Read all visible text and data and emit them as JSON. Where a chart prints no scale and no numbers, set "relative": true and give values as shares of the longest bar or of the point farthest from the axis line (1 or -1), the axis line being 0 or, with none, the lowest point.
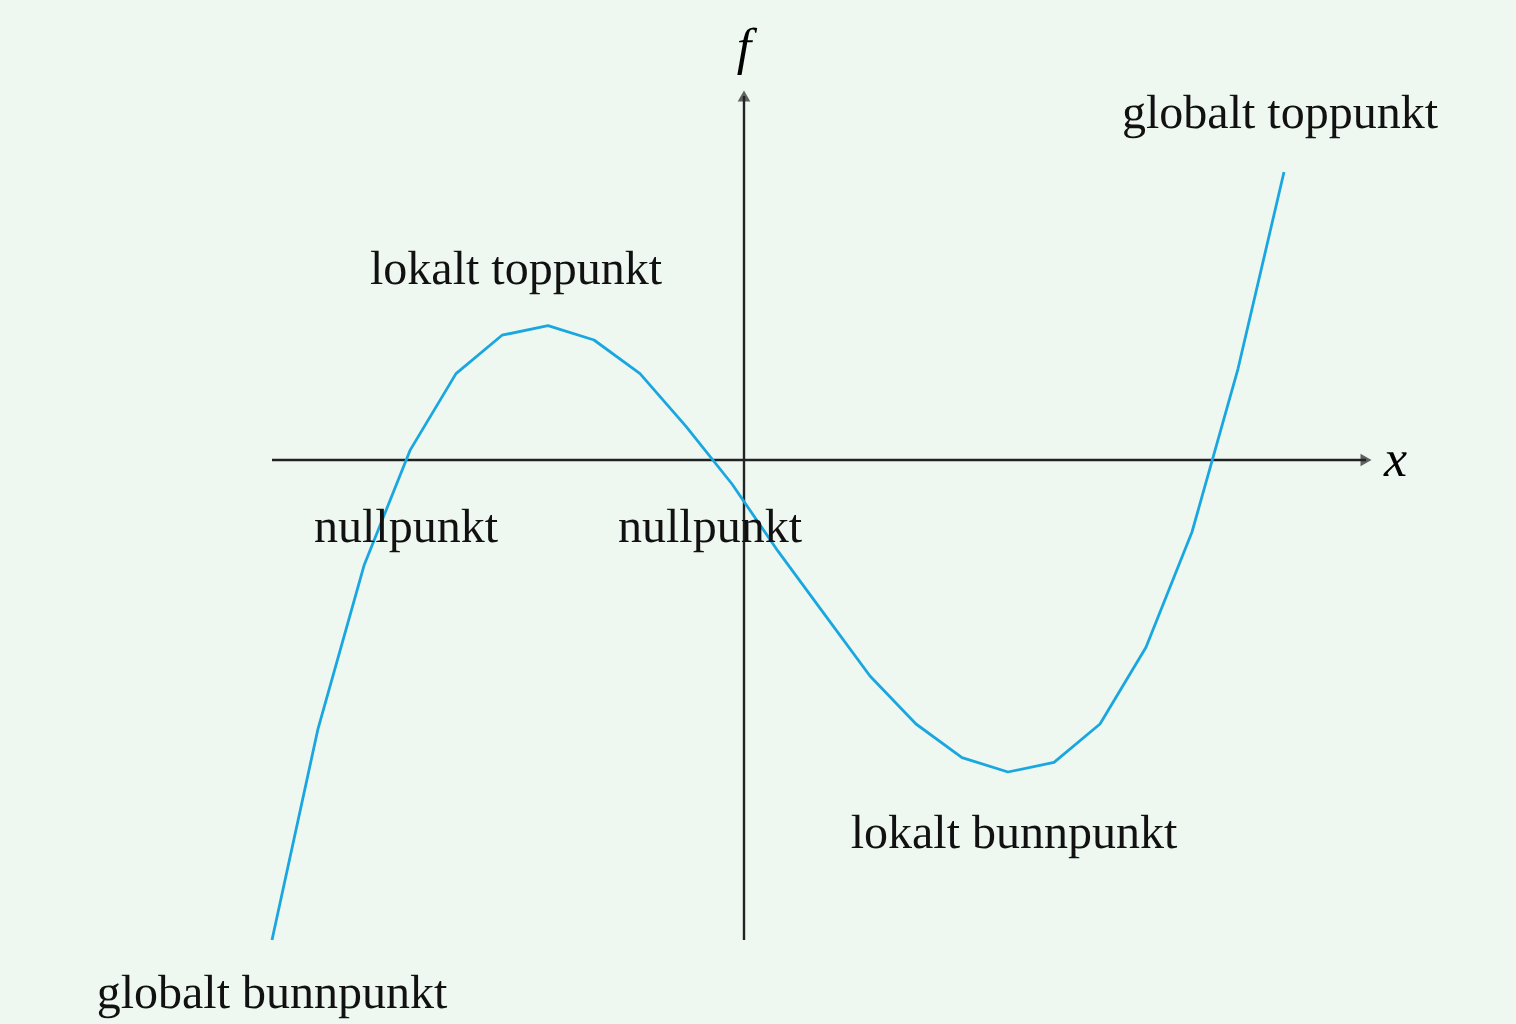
{
  "chart_data": {
    "type": "line",
    "relative": true,
    "xlabel": "x",
    "ylabel": "f",
    "categories": [
      null,
      null,
      null,
      null,
      null,
      null,
      null,
      null,
      null,
      null,
      null,
      null,
      null,
      null,
      null,
      null,
      null,
      null,
      null,
      null,
      null,
      null,
      null
    ],
    "series": [
      {
        "type": "line",
        "color": "#1aa7e0",
        "values": [
          -1.0,
          -0.56,
          -0.22,
          0.02,
          0.18,
          0.26,
          0.28,
          0.25,
          0.18,
          0.07,
          -0.05,
          -0.19,
          -0.32,
          -0.45,
          -0.55,
          -0.62,
          -0.65,
          -0.63,
          -0.55,
          -0.39,
          -0.15,
          0.19,
          0.6
        ]
      }
    ],
    "annotations": [
      "lokalt toppunkt",
      "globalt toppunkt",
      "nullpunkt",
      "nullpunkt",
      "lokalt bunnpunkt",
      "globalt bunnpunkt"
    ]
  }
}
